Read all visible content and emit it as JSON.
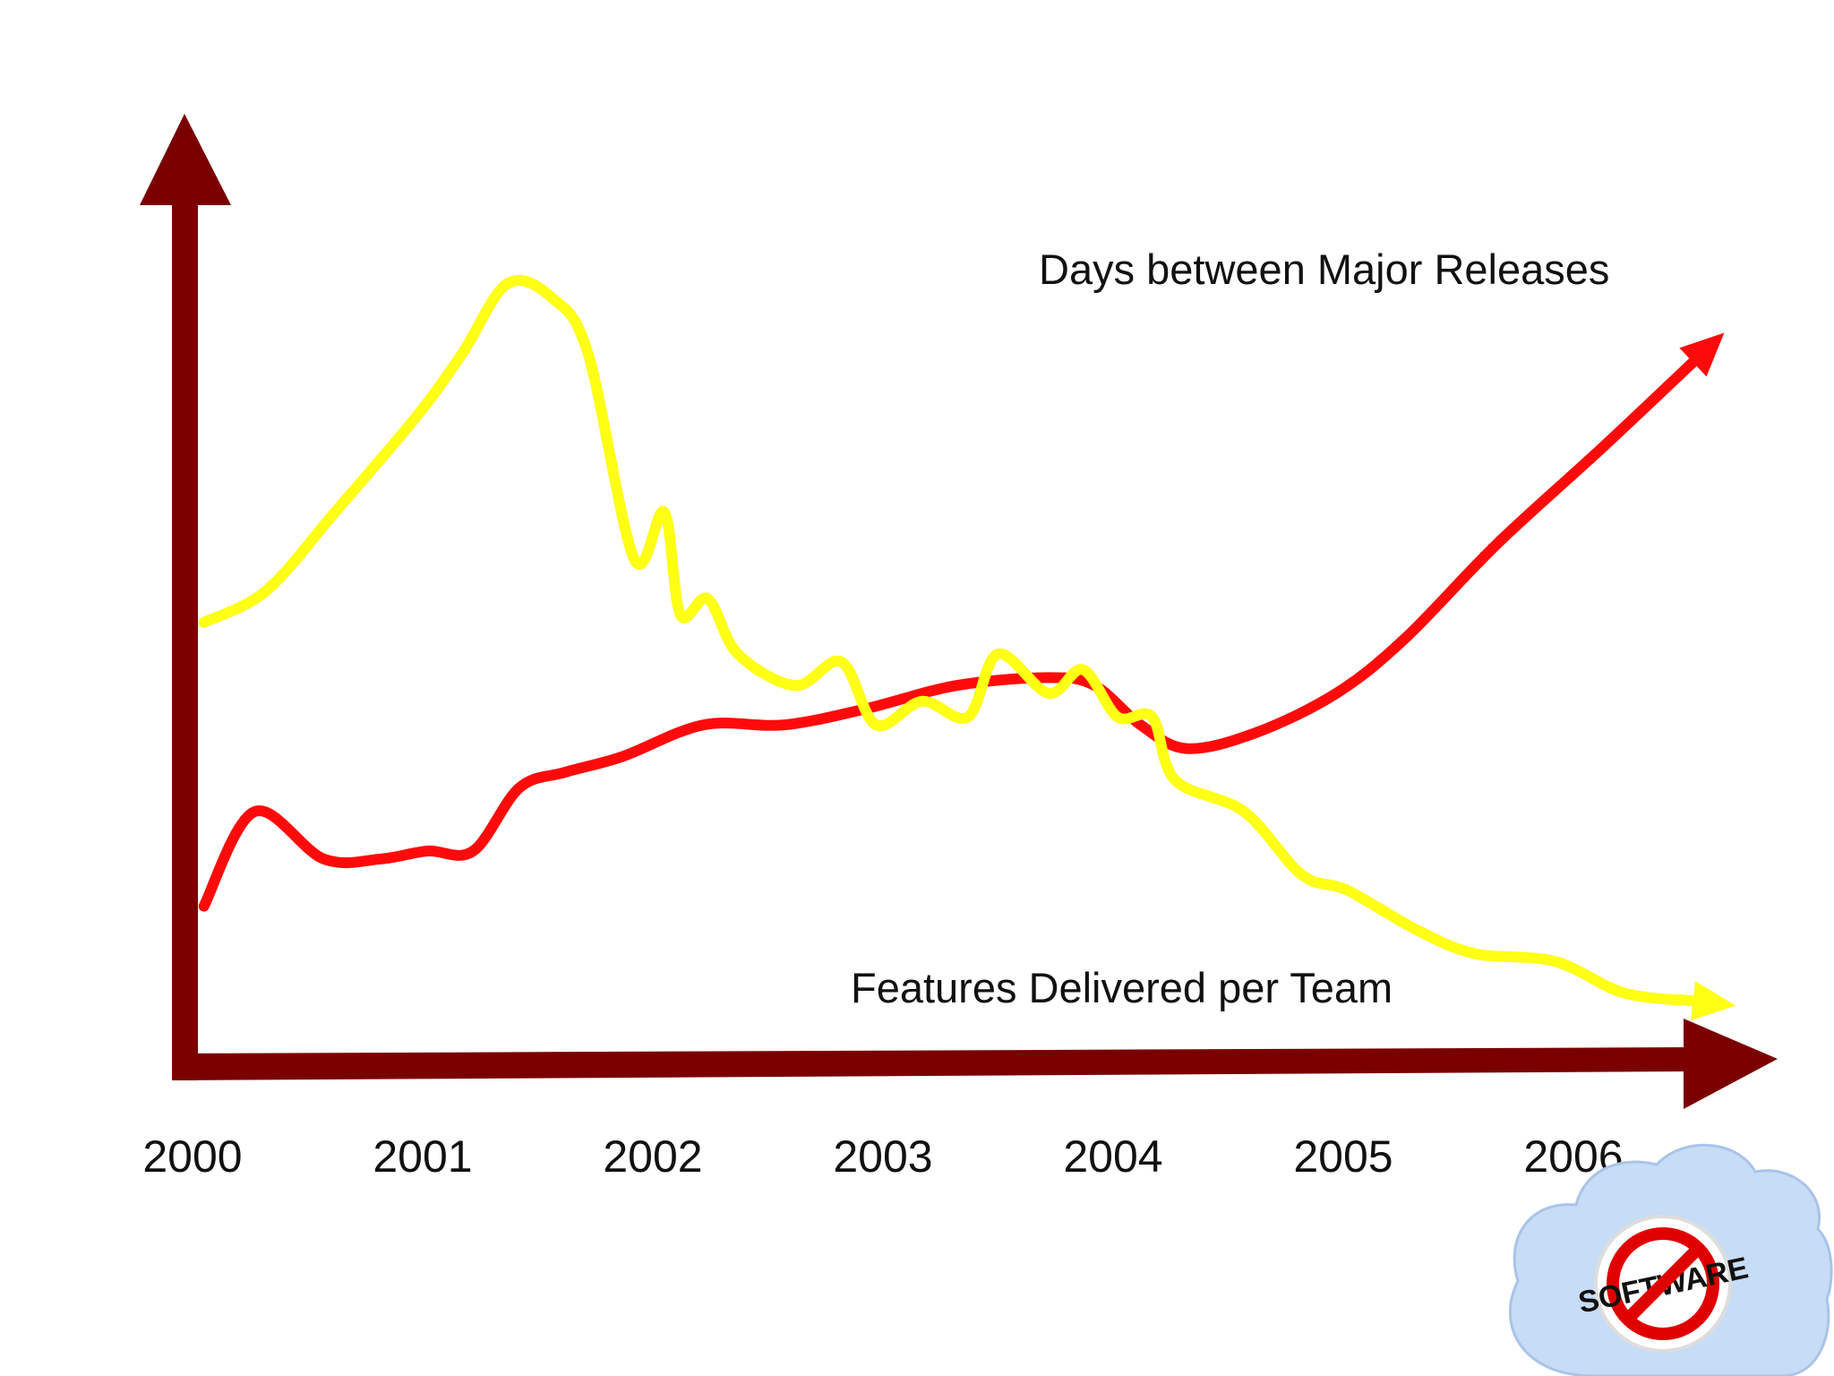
{
  "colors": {
    "axis": "#7a0000",
    "days_line": "#ff0a0a",
    "features_line": "#ffff14",
    "background": "#ffffff",
    "logo_cloud": "#c7dcf5",
    "logo_ring": "#e00000"
  },
  "logo": {
    "icon": "no-software-cloud-logo",
    "text": "SOFTWARE"
  },
  "chart_data": {
    "type": "line",
    "title": "",
    "xlabel": "",
    "ylabel": "",
    "categories": [
      "2000",
      "2001",
      "2002",
      "2003",
      "2004",
      "2005",
      "2006"
    ],
    "x_range": [
      2000,
      2006.8
    ],
    "y_range": [
      0,
      100
    ],
    "y_ticks_shown": false,
    "grid": false,
    "legend": "inline labels at line ends",
    "series": [
      {
        "name": "Days between Major Releases",
        "values": [
          [
            2000.03,
            18
          ],
          [
            2000.25,
            30
          ],
          [
            2000.55,
            24
          ],
          [
            2000.8,
            24
          ],
          [
            2001.0,
            25
          ],
          [
            2001.2,
            25
          ],
          [
            2001.4,
            33
          ],
          [
            2001.6,
            35
          ],
          [
            2001.85,
            37
          ],
          [
            2002.2,
            41
          ],
          [
            2002.55,
            41
          ],
          [
            2002.9,
            43
          ],
          [
            2003.3,
            46
          ],
          [
            2003.7,
            47
          ],
          [
            2003.9,
            46
          ],
          [
            2004.1,
            41
          ],
          [
            2004.3,
            38
          ],
          [
            2004.6,
            40
          ],
          [
            2004.95,
            45
          ],
          [
            2005.25,
            52
          ],
          [
            2005.65,
            64
          ],
          [
            2006.1,
            76
          ],
          [
            2006.5,
            87
          ]
        ]
      },
      {
        "name": "Features Delivered per Team",
        "values": [
          [
            2000.03,
            54
          ],
          [
            2000.3,
            58
          ],
          [
            2000.6,
            68
          ],
          [
            2000.95,
            80
          ],
          [
            2001.15,
            88
          ],
          [
            2001.35,
            97
          ],
          [
            2001.55,
            95
          ],
          [
            2001.7,
            88
          ],
          [
            2001.9,
            62
          ],
          [
            2002.03,
            68
          ],
          [
            2002.1,
            55
          ],
          [
            2002.22,
            57
          ],
          [
            2002.35,
            50
          ],
          [
            2002.6,
            46
          ],
          [
            2002.8,
            49
          ],
          [
            2002.95,
            41
          ],
          [
            2003.15,
            44
          ],
          [
            2003.35,
            42
          ],
          [
            2003.48,
            50
          ],
          [
            2003.7,
            45
          ],
          [
            2003.85,
            48
          ],
          [
            2004.0,
            42
          ],
          [
            2004.15,
            42
          ],
          [
            2004.25,
            34
          ],
          [
            2004.55,
            30
          ],
          [
            2004.8,
            22
          ],
          [
            2005.0,
            20
          ],
          [
            2005.3,
            15
          ],
          [
            2005.55,
            12
          ],
          [
            2005.9,
            11
          ],
          [
            2006.2,
            7
          ],
          [
            2006.5,
            6
          ]
        ]
      }
    ]
  }
}
